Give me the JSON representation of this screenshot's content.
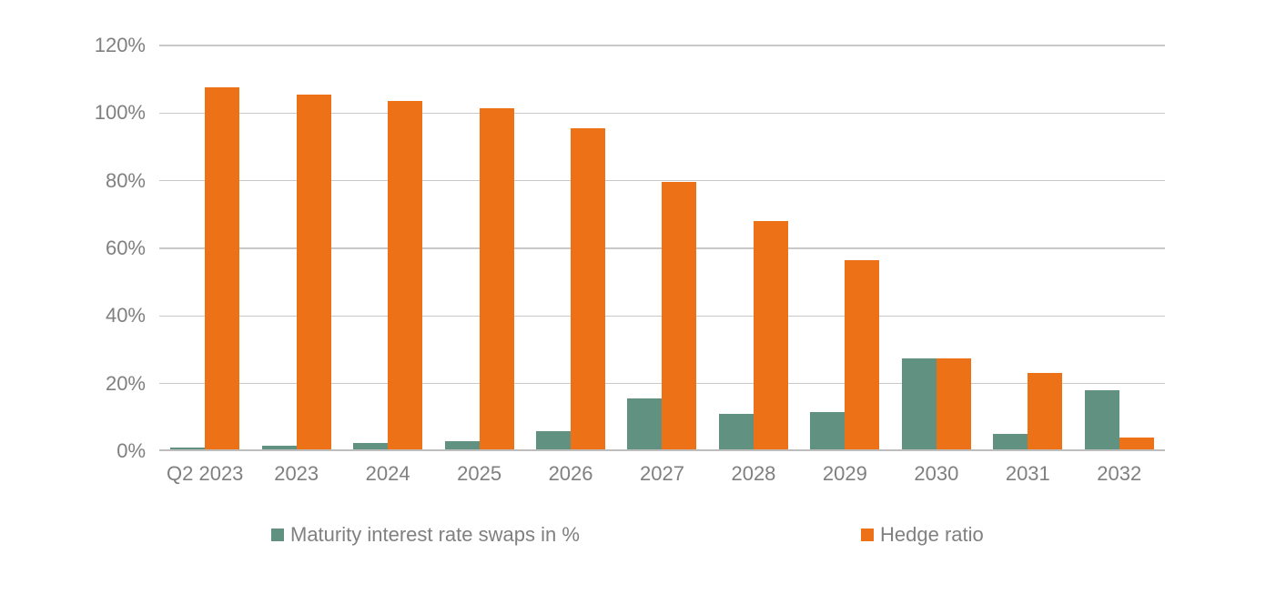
{
  "chart_data": {
    "type": "bar",
    "title": "",
    "xlabel": "",
    "ylabel": "",
    "categories": [
      "Q2 2023",
      "2023",
      "2024",
      "2025",
      "2026",
      "2027",
      "2028",
      "2029",
      "2030",
      "2031",
      "2032"
    ],
    "series": [
      {
        "name": "Maturity interest rate swaps in %",
        "color": "#619180",
        "values": [
          0.5,
          1,
          2,
          2.5,
          5.5,
          15,
          10.5,
          11,
          27,
          4.5,
          17.5
        ]
      },
      {
        "name": "Hedge ratio",
        "color": "#ED7117",
        "values": [
          107,
          105,
          103,
          101,
          95,
          79,
          67.5,
          56,
          27,
          22.5,
          3.5
        ]
      }
    ],
    "ylim": [
      0,
      120
    ],
    "yticks": [
      0,
      20,
      40,
      60,
      80,
      100,
      120
    ],
    "ytick_labels": [
      "0%",
      "20%",
      "40%",
      "60%",
      "80%",
      "100%",
      "120%"
    ],
    "grid": true,
    "legend_position": "bottom",
    "colors": {
      "axis_text": "#808080",
      "gridline": "#C8C8C8",
      "axis_line": "#BDBDBD",
      "background": "#FFFFFF"
    }
  }
}
